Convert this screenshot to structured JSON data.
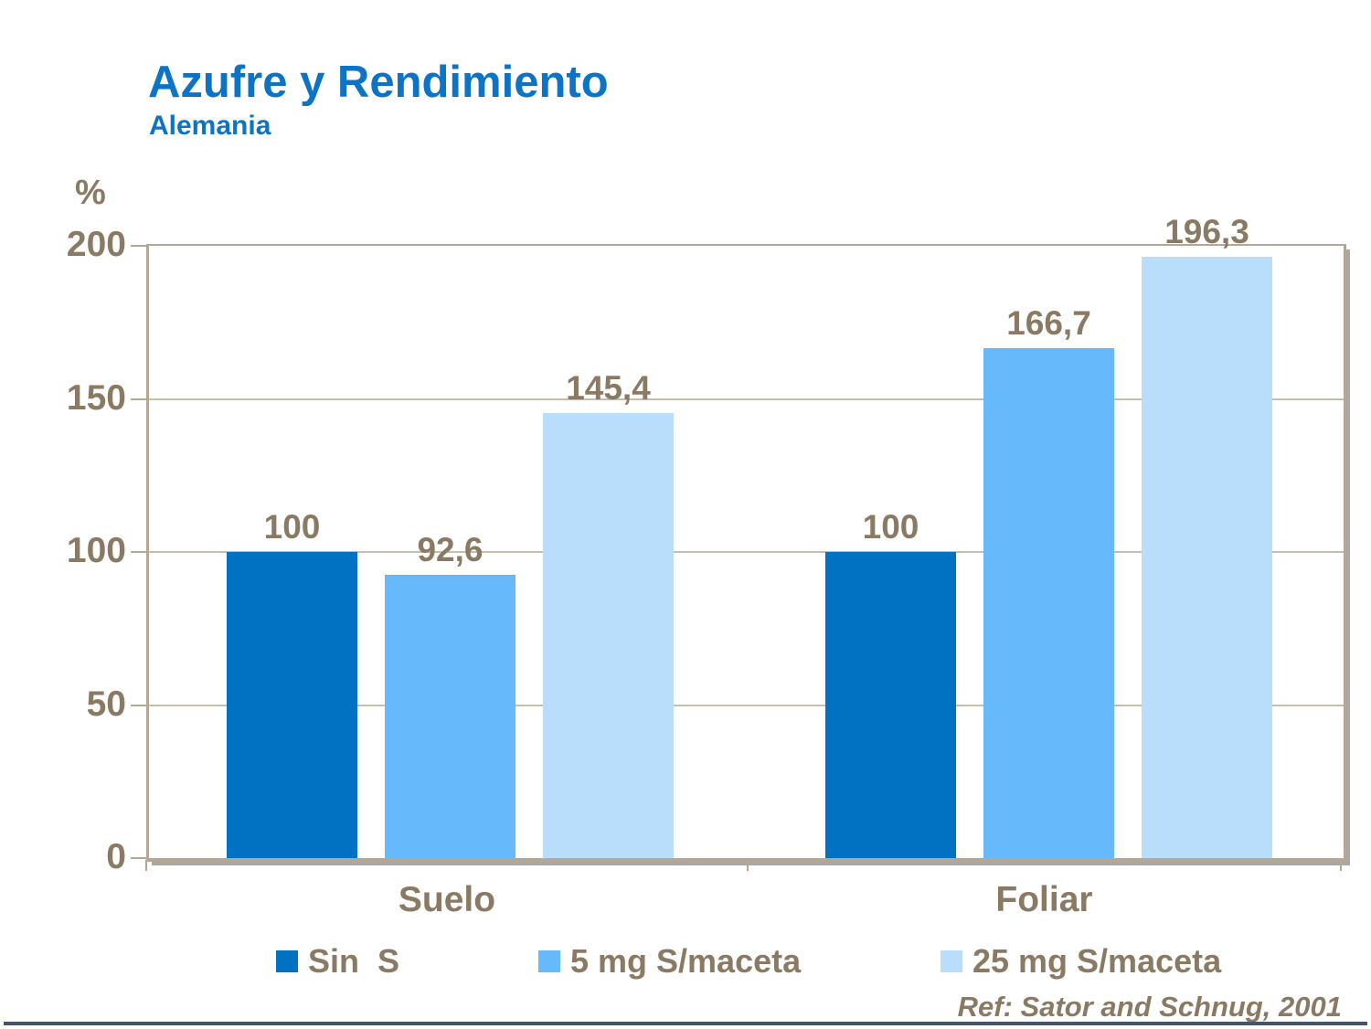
{
  "slide": {
    "title": "Azufre y Rendimiento",
    "subtitle": "Alemania",
    "unit_label": "%",
    "reference": "Ref: Sator and Schnug, 2001"
  },
  "colors": {
    "title_blue": "#0D73C5",
    "label_brown": "#8A7A64",
    "axis_tan": "#B5A795",
    "gridline_tan": "#C9BCAB",
    "shadow_gray": "#A8A8A8",
    "bottom_line": "#44546A",
    "series": [
      "#0171C1",
      "#66B9FA",
      "#B9DEFB"
    ]
  },
  "chart_data": {
    "type": "bar",
    "title": "Azufre y Rendimiento",
    "subtitle": "Alemania",
    "categories": [
      "Suelo",
      "Foliar"
    ],
    "series": [
      {
        "name": "Sin  S",
        "values": [
          100,
          100
        ],
        "value_labels": [
          "100",
          "100"
        ],
        "color": "#0171C1"
      },
      {
        "name": "5 mg S/maceta",
        "values": [
          92.6,
          166.7
        ],
        "value_labels": [
          "92,6",
          "166,7"
        ],
        "color": "#66B9FA"
      },
      {
        "name": "25 mg S/maceta",
        "values": [
          145.4,
          196.3
        ],
        "value_labels": [
          "145,4",
          "196,3"
        ],
        "color": "#B9DEFB"
      }
    ],
    "ylabel": "%",
    "ylim": [
      0,
      200
    ],
    "yticks": [
      0,
      50,
      100,
      150,
      200
    ],
    "grid": true,
    "legend_position": "bottom",
    "reference": "Ref: Sator and Schnug, 2001"
  }
}
